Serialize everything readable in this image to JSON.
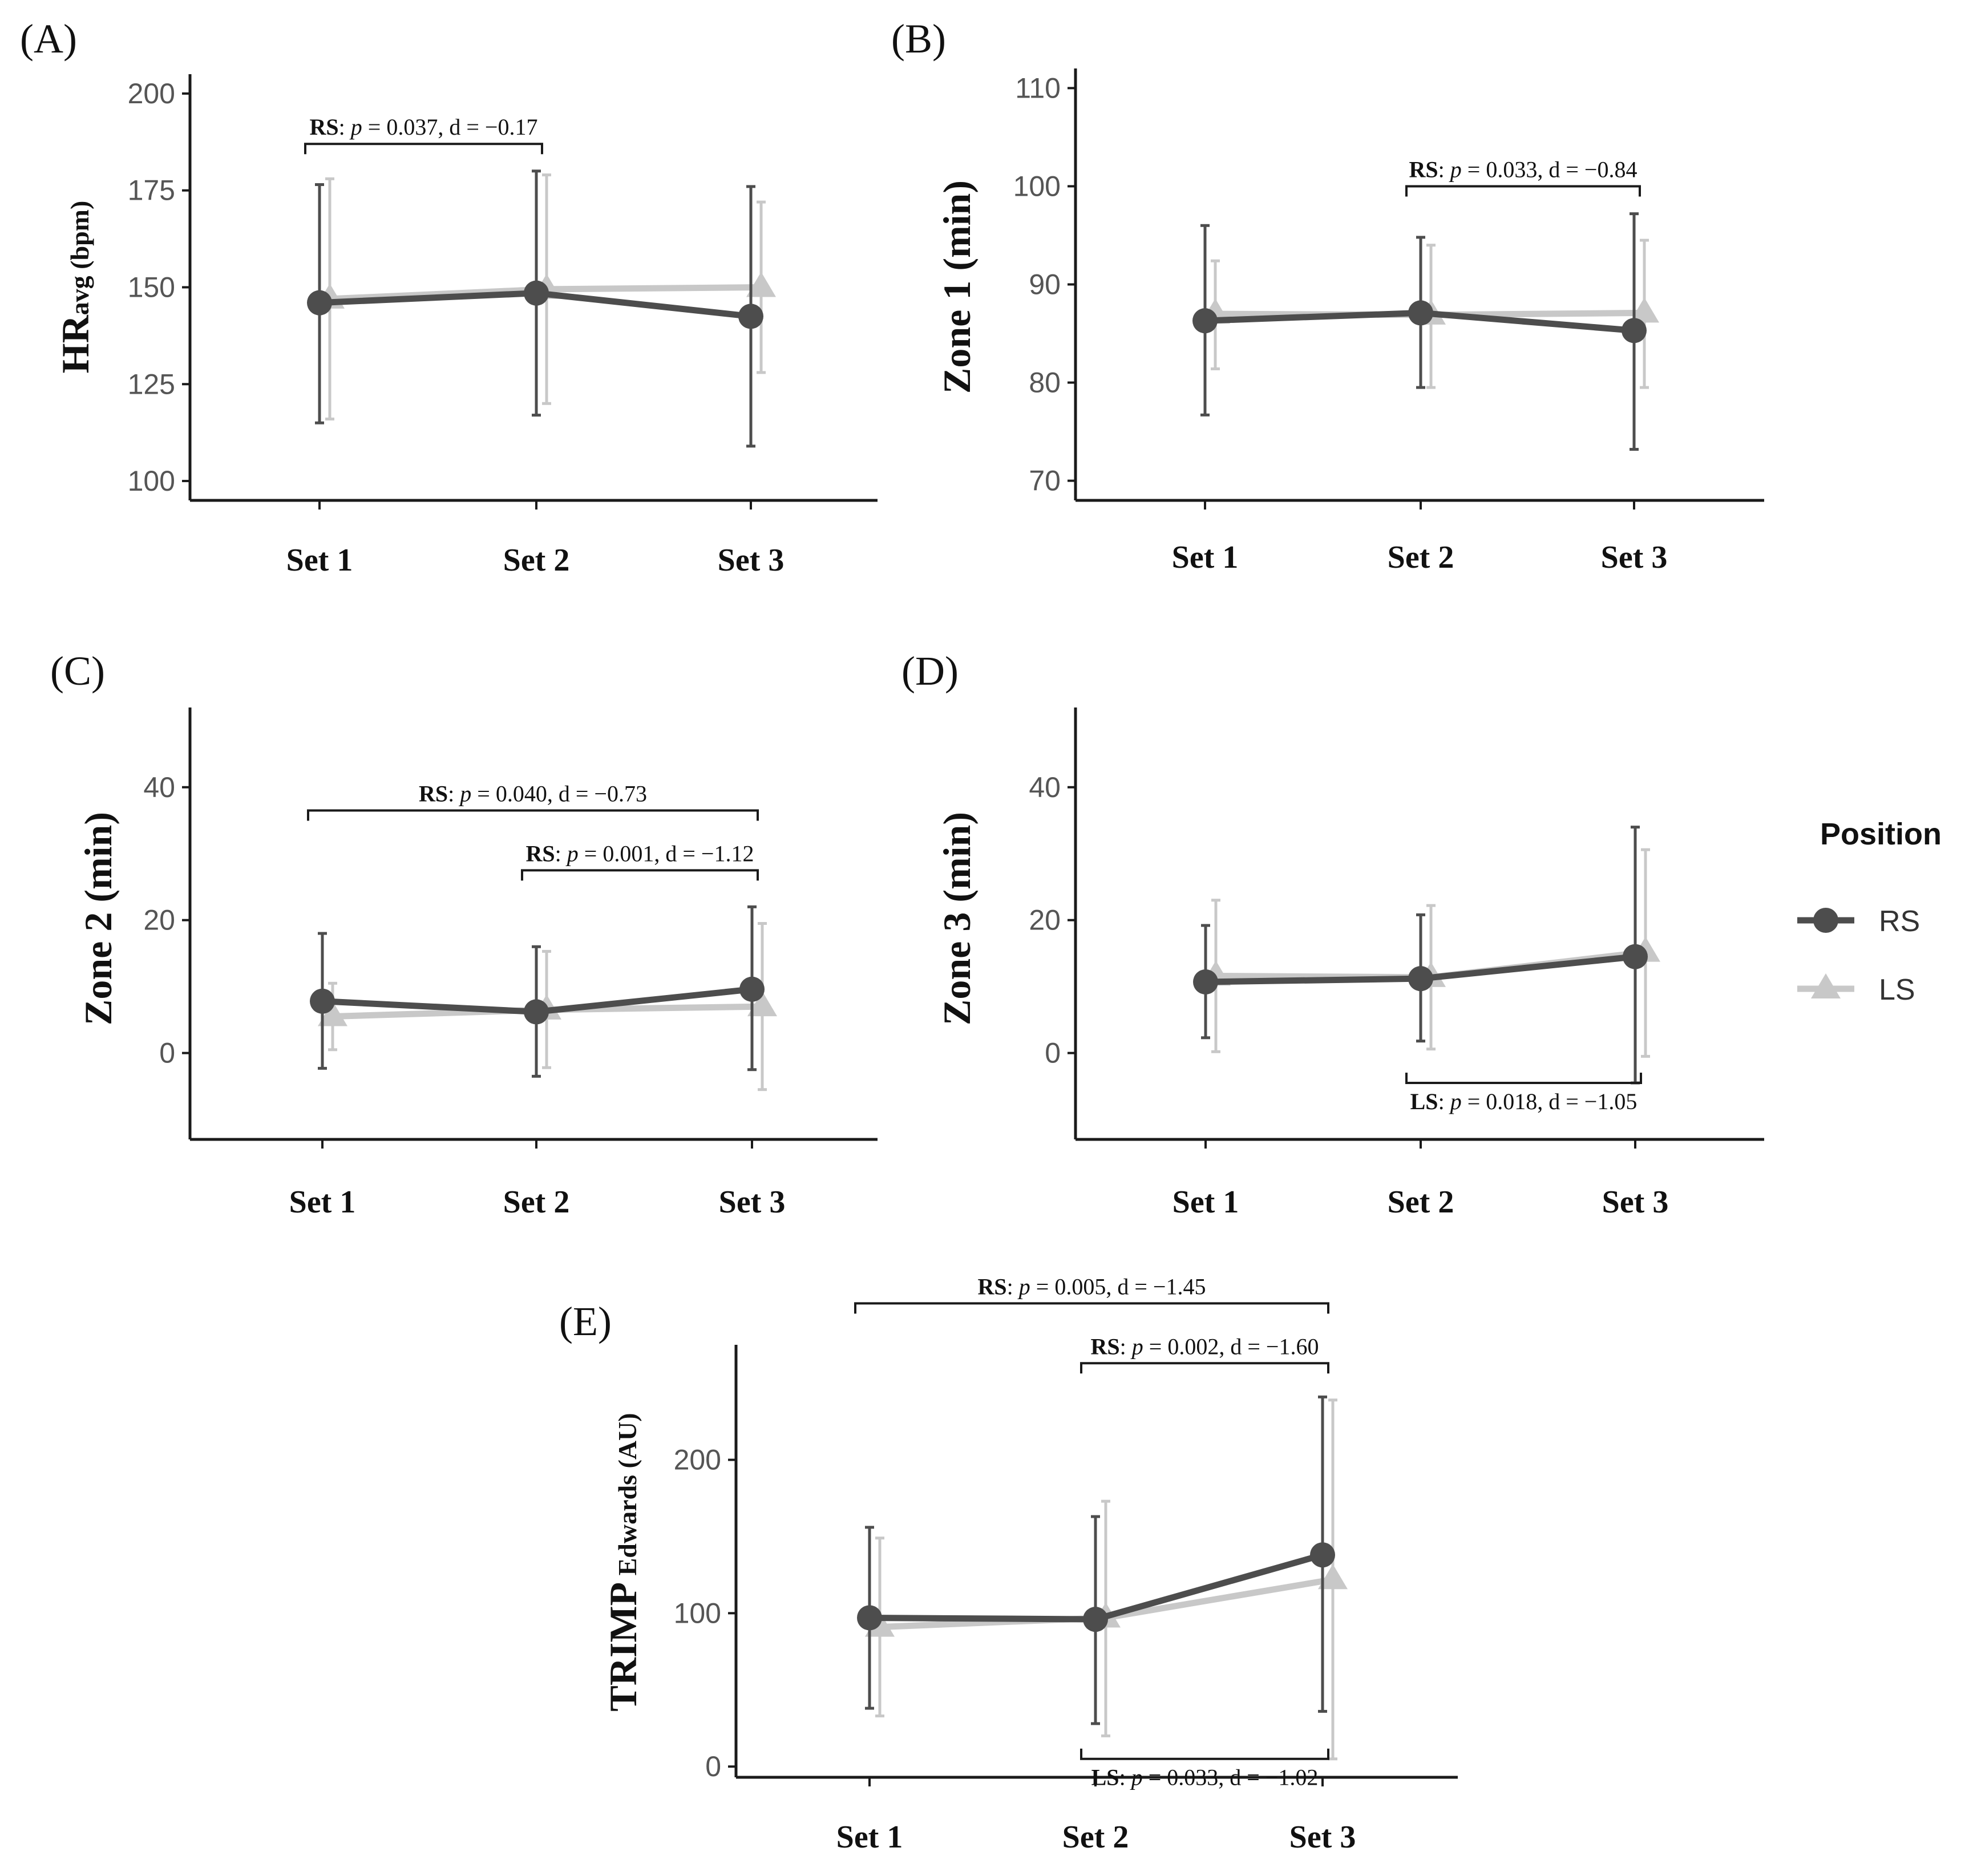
{
  "chart_data": [
    {
      "id": "A",
      "panel_label": "(A)",
      "type": "line",
      "ylabel": "HR",
      "ylabel_sub": "avg (bpm)",
      "categories": [
        "Set 1",
        "Set 2",
        "Set 3"
      ],
      "ylim": [
        95,
        205
      ],
      "yticks": [
        100,
        125,
        150,
        175,
        200
      ],
      "series": [
        {
          "name": "RS",
          "values": [
            146,
            148.5,
            142.5
          ],
          "err_low": [
            115,
            117,
            109
          ],
          "err_high": [
            176.5,
            180,
            176
          ]
        },
        {
          "name": "LS",
          "values": [
            147,
            149.5,
            150
          ],
          "err_low": [
            116,
            120,
            128
          ],
          "err_high": [
            178,
            179,
            172
          ]
        }
      ],
      "annotations": [
        {
          "group": "RS",
          "p": "0.037",
          "d": "−0.17",
          "from": 0,
          "to": 1,
          "y": 187,
          "side": "above"
        }
      ]
    },
    {
      "id": "B",
      "panel_label": "(B)",
      "type": "line",
      "ylabel": "Zone 1 (min)",
      "ylabel_sub": "",
      "categories": [
        "Set 1",
        "Set 2",
        "Set 3"
      ],
      "ylim": [
        68,
        112
      ],
      "yticks": [
        70,
        80,
        90,
        100,
        110
      ],
      "series": [
        {
          "name": "RS",
          "values": [
            86.3,
            87.1,
            85.3
          ],
          "err_low": [
            76.7,
            79.5,
            73.2
          ],
          "err_high": [
            96,
            94.8,
            97.2
          ]
        },
        {
          "name": "LS",
          "values": [
            87,
            86.9,
            87.1
          ],
          "err_low": [
            81.4,
            79.5,
            79.5
          ],
          "err_high": [
            92.4,
            94,
            94.5
          ]
        }
      ],
      "annotations": [
        {
          "group": "RS",
          "p": "0.033",
          "d": "−0.84",
          "from": 1,
          "to": 2,
          "y": 100,
          "side": "above"
        }
      ]
    },
    {
      "id": "C",
      "panel_label": "(C)",
      "type": "line",
      "ylabel": "Zone 2 (min)",
      "ylabel_sub": "",
      "categories": [
        "Set 1",
        "Set 2",
        "Set 3"
      ],
      "ylim": [
        -13,
        52
      ],
      "yticks": [
        0,
        20,
        40
      ],
      "series": [
        {
          "name": "RS",
          "values": [
            7.8,
            6.2,
            9.6
          ],
          "err_low": [
            -2.3,
            -3.5,
            -2.5
          ],
          "err_high": [
            18,
            16,
            22
          ]
        },
        {
          "name": "LS",
          "values": [
            5.5,
            6.5,
            7
          ],
          "err_low": [
            0.5,
            -2.2,
            -5.5
          ],
          "err_high": [
            10.5,
            15.3,
            19.5
          ]
        }
      ],
      "annotations": [
        {
          "group": "RS",
          "p": "0.040",
          "d": "−0.73",
          "from": 0,
          "to": 2,
          "y": 36.5,
          "side": "above"
        },
        {
          "group": "RS",
          "p": "0.001",
          "d": "−1.12",
          "from": 1,
          "to": 2,
          "y": 27.5,
          "side": "above"
        }
      ]
    },
    {
      "id": "D",
      "panel_label": "(D)",
      "type": "line",
      "ylabel": "Zone 3 (min)",
      "ylabel_sub": "",
      "categories": [
        "Set 1",
        "Set 2",
        "Set 3"
      ],
      "ylim": [
        -13,
        52
      ],
      "yticks": [
        0,
        20,
        40
      ],
      "series": [
        {
          "name": "RS",
          "values": [
            10.7,
            11.2,
            14.5
          ],
          "err_low": [
            2.3,
            1.8,
            -4.5
          ],
          "err_high": [
            19.2,
            20.8,
            34
          ]
        },
        {
          "name": "LS",
          "values": [
            11.6,
            11.4,
            15.2
          ],
          "err_low": [
            0.2,
            0.6,
            -0.5
          ],
          "err_high": [
            23,
            22.2,
            30.6
          ]
        }
      ],
      "annotations": [
        {
          "group": "LS",
          "p": "0.018",
          "d": "−1.05",
          "from": 1,
          "to": 2,
          "y": -4.5,
          "side": "below"
        }
      ]
    },
    {
      "id": "E",
      "panel_label": "(E)",
      "type": "line",
      "ylabel": "TRIMP",
      "ylabel_sub": " Edwards (AU)",
      "categories": [
        "Set 1",
        "Set 2",
        "Set 3"
      ],
      "ylim": [
        -7,
        275
      ],
      "yticks": [
        0,
        100,
        200
      ],
      "series": [
        {
          "name": "RS",
          "values": [
            97,
            96,
            138
          ],
          "err_low": [
            38,
            28,
            36
          ],
          "err_high": [
            156,
            163,
            241
          ]
        },
        {
          "name": "LS",
          "values": [
            91,
            97,
            122
          ],
          "err_low": [
            33,
            20,
            5
          ],
          "err_high": [
            149,
            173,
            239
          ]
        }
      ],
      "annotations": [
        {
          "group": "RS",
          "p": "0.005",
          "d": "−1.45",
          "from": 0,
          "to": 2,
          "y": 302,
          "side": "above"
        },
        {
          "group": "RS",
          "p": "0.002",
          "d": "−1.60",
          "from": 1,
          "to": 2,
          "y": 263,
          "side": "above"
        },
        {
          "group": "LS",
          "p": "0.033",
          "d": "−1.02",
          "from": 1,
          "to": 2,
          "y": 5,
          "side": "below"
        }
      ]
    }
  ],
  "legend": {
    "title": "Position",
    "items": [
      {
        "name": "RS",
        "color": "#4d4d4d",
        "marker": "circle"
      },
      {
        "name": "LS",
        "color": "#c8c8c8",
        "marker": "triangle"
      }
    ]
  },
  "colors": {
    "RS": "#4d4d4d",
    "LS": "#c8c8c8",
    "axis": "#1a1a1a",
    "tick_text": "#555555"
  }
}
